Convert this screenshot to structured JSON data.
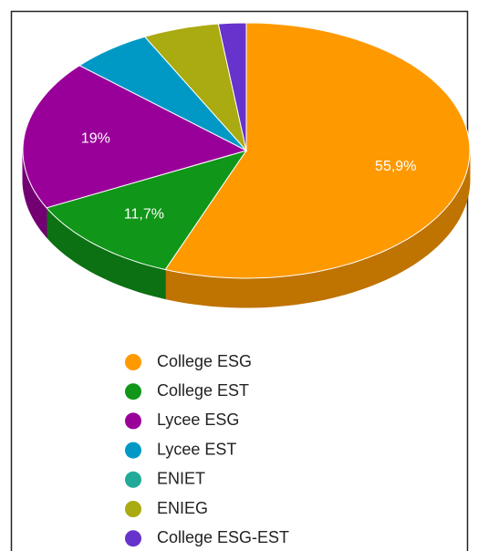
{
  "chart_data": {
    "type": "pie",
    "categories": [
      "College ESG",
      "College EST",
      "Lycee ESG",
      "Lycee EST",
      "ENIET",
      "ENIEG",
      "College ESG-EST"
    ],
    "values": [
      55.9,
      11.7,
      19,
      5.9,
      0,
      5.5,
      2
    ],
    "value_labels": [
      "55,9%",
      "11,7%",
      "19%",
      null,
      null,
      null,
      null
    ],
    "colors": [
      "#ff9900",
      "#109618",
      "#990099",
      "#0099c6",
      "#22aa99",
      "#aaaa11",
      "#6633cc"
    ],
    "legend": "bottom"
  }
}
